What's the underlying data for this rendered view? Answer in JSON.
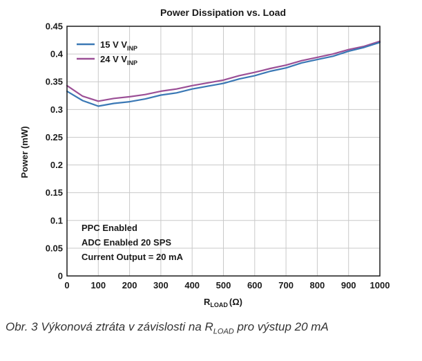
{
  "chart_data": {
    "type": "line",
    "title": "Power Dissipation vs. Load",
    "xlabel": {
      "main": "R",
      "sub": "LOAD",
      "unit": "(Ω)"
    },
    "ylabel": "Power (mW)",
    "xlim": [
      0,
      1000
    ],
    "ylim": [
      0,
      0.45
    ],
    "xticks": [
      "0",
      "100",
      "200",
      "300",
      "400",
      "500",
      "600",
      "700",
      "800",
      "900",
      "1000"
    ],
    "yticks": [
      "0",
      "0.05",
      "0.1",
      "0.15",
      "0.2",
      "0.25",
      "0.3",
      "0.35",
      "0.4",
      "0.45"
    ],
    "grid": true,
    "legend_position": "top-left",
    "series": [
      {
        "name": {
          "main": "15 V V",
          "sub": "INP"
        },
        "color": "#3a78b5",
        "x": [
          0,
          50,
          100,
          150,
          200,
          250,
          300,
          350,
          400,
          450,
          500,
          550,
          600,
          650,
          700,
          750,
          800,
          850,
          900,
          950,
          1000
        ],
        "y": [
          0.333,
          0.316,
          0.306,
          0.311,
          0.314,
          0.319,
          0.326,
          0.33,
          0.337,
          0.342,
          0.347,
          0.355,
          0.361,
          0.369,
          0.375,
          0.384,
          0.39,
          0.396,
          0.405,
          0.412,
          0.421
        ]
      },
      {
        "name": {
          "main": "24 V V",
          "sub": "INP"
        },
        "color": "#9b4f96",
        "x": [
          0,
          50,
          100,
          150,
          200,
          250,
          300,
          350,
          400,
          450,
          500,
          550,
          600,
          650,
          700,
          750,
          800,
          850,
          900,
          950,
          1000
        ],
        "y": [
          0.343,
          0.324,
          0.315,
          0.32,
          0.323,
          0.327,
          0.333,
          0.337,
          0.343,
          0.348,
          0.353,
          0.361,
          0.367,
          0.374,
          0.38,
          0.388,
          0.394,
          0.4,
          0.408,
          0.414,
          0.423
        ]
      }
    ],
    "annotations": [
      "PPC Enabled",
      "ADC Enabled 20 SPS",
      "Current Output = 20 mA"
    ]
  },
  "caption": {
    "prefix": "Obr. 3  Výkonová ztráta v závislosti na R",
    "sub": "LOAD",
    "suffix": " pro výstup 20 mA"
  }
}
